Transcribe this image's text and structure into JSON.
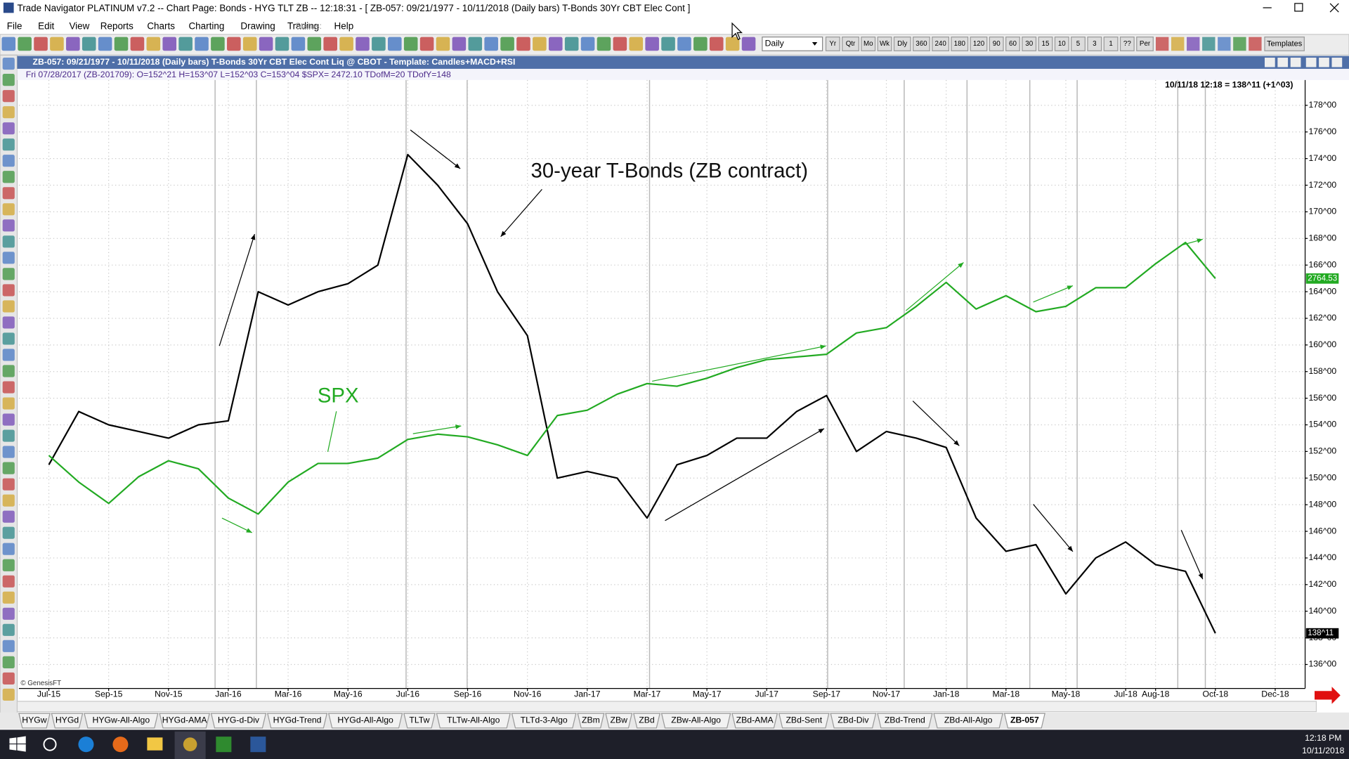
{
  "window": {
    "title": "Trade Navigator PLATINUM v7.2  --  Chart Page: Bonds - HYG TLT ZB -- 12:18:31 - [ ZB-057:  09/21/1977 - 10/11/2018  (Daily bars)  T-Bonds 30Yr CBT Elec Cont ]"
  },
  "menu": [
    "File",
    "Edit",
    "View",
    "Reports",
    "Charts",
    "Charting",
    "Drawing",
    "Trading",
    "Help"
  ],
  "status_label": "Status:",
  "toolbar": {
    "period": "Daily",
    "buttons": [
      "Yr",
      "Qtr",
      "Mo",
      "Wk",
      "Dly",
      "360",
      "240",
      "180",
      "120",
      "90",
      "60",
      "30",
      "15",
      "10",
      "5",
      "3",
      "1",
      "??",
      "Per"
    ],
    "templates": "Templates"
  },
  "chart_header": "ZB-057:  09/21/1977 - 10/11/2018  (Daily bars)   T-Bonds 30Yr CBT Elec Cont Liq @ CBOT   -  Template: Candles+MACD+RSI",
  "info_line": "Fri    07/28/2017 (ZB-201709):  O=152^21  H=153^07  L=152^03  C=153^04  $SPX= 2472.10  TDofM=20  TDofY=148",
  "cursor_label": "10/11/18 12:18 = 138^11 (+1^03)",
  "copyright": "© GenesisFT",
  "chart_data": {
    "type": "line",
    "x": [
      "2015-07",
      "2015-08",
      "2015-09",
      "2015-10",
      "2015-11",
      "2015-12",
      "2016-01",
      "2016-02",
      "2016-03",
      "2016-04",
      "2016-05",
      "2016-06",
      "2016-07",
      "2016-08",
      "2016-09",
      "2016-10",
      "2016-11",
      "2016-12",
      "2017-01",
      "2017-02",
      "2017-03",
      "2017-04",
      "2017-05",
      "2017-06",
      "2017-07",
      "2017-08",
      "2017-09",
      "2017-10",
      "2017-11",
      "2017-12",
      "2018-01",
      "2018-02",
      "2018-03",
      "2018-04",
      "2018-05",
      "2018-06",
      "2018-07",
      "2018-08",
      "2018-09",
      "2018-10"
    ],
    "xlim": [
      "2015-06",
      "2019-01"
    ],
    "xticks": [
      {
        "value": "2015-07",
        "label": "Jul-15"
      },
      {
        "value": "2015-09",
        "label": "Sep-15"
      },
      {
        "value": "2015-11",
        "label": "Nov-15"
      },
      {
        "value": "2016-01",
        "label": "Jan-16"
      },
      {
        "value": "2016-03",
        "label": "Mar-16"
      },
      {
        "value": "2016-05",
        "label": "May-16"
      },
      {
        "value": "2016-07",
        "label": "Jul-16"
      },
      {
        "value": "2016-09",
        "label": "Sep-16"
      },
      {
        "value": "2016-11",
        "label": "Nov-16"
      },
      {
        "value": "2017-01",
        "label": "Jan-17"
      },
      {
        "value": "2017-03",
        "label": "Mar-17"
      },
      {
        "value": "2017-05",
        "label": "May-17"
      },
      {
        "value": "2017-07",
        "label": "Jul-17"
      },
      {
        "value": "2017-09",
        "label": "Sep-17"
      },
      {
        "value": "2017-11",
        "label": "Nov-17"
      },
      {
        "value": "2018-01",
        "label": "Jan-18"
      },
      {
        "value": "2018-03",
        "label": "Mar-18"
      },
      {
        "value": "2018-05",
        "label": "May-18"
      },
      {
        "value": "2018-07",
        "label": "Jul-18"
      },
      {
        "value": "2018-08",
        "label": "Aug-18"
      },
      {
        "value": "2018-10",
        "label": "Oct-18"
      },
      {
        "value": "2018-12",
        "label": "Dec-18"
      }
    ],
    "ylim": [
      134.2,
      179.9
    ],
    "yticks": [
      {
        "value": 136,
        "label": "136^00"
      },
      {
        "value": 138,
        "label": "138^00"
      },
      {
        "value": 140,
        "label": "140^00"
      },
      {
        "value": 142,
        "label": "142^00"
      },
      {
        "value": 144,
        "label": "144^00"
      },
      {
        "value": 146,
        "label": "146^00"
      },
      {
        "value": 148,
        "label": "148^00"
      },
      {
        "value": 150,
        "label": "150^00"
      },
      {
        "value": 152,
        "label": "152^00"
      },
      {
        "value": 154,
        "label": "154^00"
      },
      {
        "value": 156,
        "label": "156^00"
      },
      {
        "value": 158,
        "label": "158^00"
      },
      {
        "value": 160,
        "label": "160^00"
      },
      {
        "value": 162,
        "label": "162^00"
      },
      {
        "value": 164,
        "label": "164^00"
      },
      {
        "value": 166,
        "label": "166^00"
      },
      {
        "value": 168,
        "label": "168^00"
      },
      {
        "value": 170,
        "label": "170^00"
      },
      {
        "value": 172,
        "label": "172^00"
      },
      {
        "value": 174,
        "label": "174^00"
      },
      {
        "value": 176,
        "label": "176^00"
      },
      {
        "value": 178,
        "label": "178^00"
      }
    ],
    "y2lim": [
      1225,
      3510
    ],
    "grid": true,
    "series": [
      {
        "name": "30-year T-Bonds (ZB contract)",
        "color": "#000000",
        "values": [
          151,
          155,
          154,
          153.5,
          153,
          154,
          154.3,
          164,
          163,
          164,
          164.6,
          166,
          174.3,
          172,
          169.1,
          164,
          160.7,
          150,
          150.5,
          150,
          147,
          151,
          151.7,
          153,
          153,
          155,
          156.2,
          152,
          153.5,
          153,
          152.3,
          147,
          144.5,
          145,
          141.3,
          144,
          145.2,
          143.5,
          143,
          138.34
        ],
        "value_labels": [
          null,
          null,
          null,
          null,
          null,
          null,
          null,
          null,
          null,
          null,
          null,
          null,
          null,
          null,
          null,
          null,
          null,
          null,
          null,
          null,
          null,
          null,
          null,
          null,
          null,
          null,
          null,
          null,
          null,
          null,
          null,
          null,
          null,
          null,
          null,
          null,
          null,
          null,
          null,
          "138^11"
        ]
      },
      {
        "name": "SPX",
        "color": "#22aa22",
        "axis": "y2",
        "values": [
          2100,
          2000,
          1920,
          2020,
          2080,
          2050,
          1940,
          1880,
          2000,
          2070,
          2070,
          2090,
          2160,
          2180,
          2170,
          2140,
          2100,
          2250,
          2270,
          2330,
          2370,
          2360,
          2390,
          2430,
          2460,
          2470,
          2480,
          2560,
          2580,
          2660,
          2750,
          2650,
          2700,
          2640,
          2660,
          2730,
          2730,
          2820,
          2900,
          2764.53
        ]
      }
    ]
  },
  "tabs": [
    "HYGw",
    "HYGd",
    "HYGw-All-Algo",
    "HYGd-AMA",
    "HYG-d-Div",
    "HYGd-Trend",
    "HYGd-All-Algo",
    "TLTw",
    "TLTw-All-Algo",
    "TLTd-3-Algo",
    "ZBm",
    "ZBw",
    "ZBd",
    "ZBw-All-Algo",
    "ZBd-AMA",
    "ZBd-Sent",
    "ZBd-Div",
    "ZBd-Trend",
    "ZBd-All-Algo",
    "ZB-057"
  ],
  "taskbar": {
    "time": "12:18 PM",
    "date": "10/11/2018"
  }
}
